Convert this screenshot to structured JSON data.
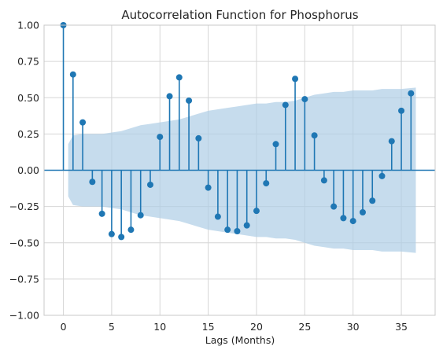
{
  "chart_data": {
    "type": "stem",
    "title": "Autocorrelation Function for Phosphorus",
    "xlabel": "Lags (Months)",
    "ylabel": "",
    "xlim": [
      -2,
      38.5
    ],
    "ylim": [
      -1.0,
      1.0
    ],
    "xticks": [
      0,
      5,
      10,
      15,
      20,
      25,
      30,
      35
    ],
    "xtick_labels": [
      "0",
      "5",
      "10",
      "15",
      "20",
      "25",
      "30",
      "35"
    ],
    "yticks": [
      1.0,
      0.75,
      0.5,
      0.25,
      0.0,
      -0.25,
      -0.5,
      -0.75,
      -1.0
    ],
    "ytick_labels": [
      "1.00",
      "0.75",
      "0.50",
      "0.25",
      "0.00",
      "−0.25",
      "−0.50",
      "−0.75",
      "−1.00"
    ],
    "grid": true,
    "colors": {
      "stem": "#1f77b4",
      "confidence_band": "#aecde6",
      "grid": "#d6d6d6",
      "axis_spine": "#c8c8c8"
    },
    "lags": [
      0,
      1,
      2,
      3,
      4,
      5,
      6,
      7,
      8,
      9,
      10,
      11,
      12,
      13,
      14,
      15,
      16,
      17,
      18,
      19,
      20,
      21,
      22,
      23,
      24,
      25,
      26,
      27,
      28,
      29,
      30,
      31,
      32,
      33,
      34,
      35,
      36
    ],
    "values": [
      1.0,
      0.66,
      0.33,
      -0.08,
      -0.3,
      -0.44,
      -0.46,
      -0.41,
      -0.31,
      -0.1,
      0.23,
      0.51,
      0.64,
      0.48,
      0.22,
      -0.12,
      -0.32,
      -0.41,
      -0.42,
      -0.38,
      -0.28,
      -0.09,
      0.18,
      0.45,
      0.63,
      0.49,
      0.24,
      -0.07,
      -0.25,
      -0.33,
      -0.35,
      -0.29,
      -0.21,
      -0.04,
      0.2,
      0.41,
      0.53
    ],
    "confidence_interval": {
      "upper": [
        0.18,
        0.24,
        0.25,
        0.25,
        0.25,
        0.26,
        0.27,
        0.29,
        0.31,
        0.32,
        0.33,
        0.34,
        0.35,
        0.37,
        0.39,
        0.41,
        0.42,
        0.43,
        0.44,
        0.45,
        0.46,
        0.46,
        0.47,
        0.47,
        0.48,
        0.5,
        0.52,
        0.53,
        0.54,
        0.54,
        0.55,
        0.55,
        0.55,
        0.56,
        0.56,
        0.56,
        0.57
      ],
      "lower": [
        -0.18,
        -0.24,
        -0.25,
        -0.25,
        -0.25,
        -0.26,
        -0.27,
        -0.29,
        -0.31,
        -0.32,
        -0.33,
        -0.34,
        -0.35,
        -0.37,
        -0.39,
        -0.41,
        -0.42,
        -0.43,
        -0.44,
        -0.45,
        -0.46,
        -0.46,
        -0.47,
        -0.47,
        -0.48,
        -0.5,
        -0.52,
        -0.53,
        -0.54,
        -0.54,
        -0.55,
        -0.55,
        -0.55,
        -0.56,
        -0.56,
        -0.56,
        -0.57
      ]
    }
  }
}
